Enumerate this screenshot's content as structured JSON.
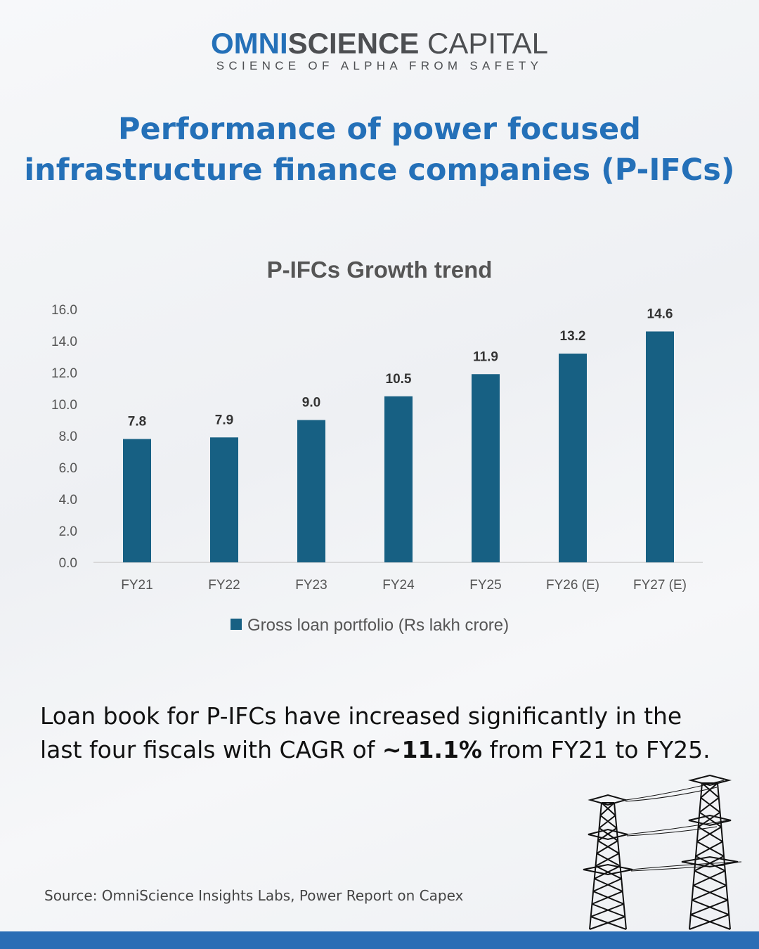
{
  "logo": {
    "part1": "OMNI",
    "part2": "SCIENCE",
    "part3": " CAPITAL",
    "tagline": "SCIENCE OF ALPHA FROM SAFETY"
  },
  "title_line1": "Performance of power focused",
  "title_line2": "infrastructure finance companies (P-IFCs)",
  "chart_data": {
    "type": "bar",
    "title": "P-IFCs Growth trend",
    "categories": [
      "FY21",
      "FY22",
      "FY23",
      "FY24",
      "FY25",
      "FY26 (E)",
      "FY27 (E)"
    ],
    "series": [
      {
        "name": "Gross loan portfolio (Rs lakh crore)",
        "values": [
          7.8,
          7.9,
          9.0,
          10.5,
          11.9,
          13.2,
          14.6
        ],
        "color": "#176083"
      }
    ],
    "ylim": [
      0,
      16
    ],
    "yticks": [
      "0.0",
      "2.0",
      "4.0",
      "6.0",
      "8.0",
      "10.0",
      "12.0",
      "14.0",
      "16.0"
    ],
    "grid": false,
    "legend": "bottom"
  },
  "body": {
    "pre": "Loan book for P-IFCs have increased significantly in the last four fiscals with CAGR of ",
    "highlight": "~11.1%",
    "post": " from FY21 to FY25."
  },
  "source": "Source: OmniScience Insights Labs, Power Report on Capex"
}
